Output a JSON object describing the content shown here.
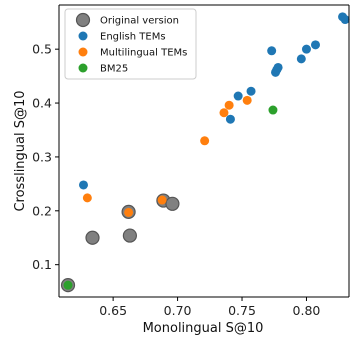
{
  "chart_data": {
    "type": "scatter",
    "xlabel": "Monolingual S@10",
    "ylabel": "Crosslingual S@10",
    "xlim": [
      0.608,
      0.833
    ],
    "ylim": [
      0.04,
      0.582
    ],
    "xticks": [
      0.65,
      0.7,
      0.75,
      0.8
    ],
    "xtick_labels": [
      "0.65",
      "0.70",
      "0.75",
      "0.80"
    ],
    "yticks": [
      0.1,
      0.2,
      0.3,
      0.4,
      0.5
    ],
    "ytick_labels": [
      "0.1",
      "0.2",
      "0.3",
      "0.4",
      "0.5"
    ],
    "grid": false,
    "legend_position": "top-left",
    "series": [
      {
        "name": "Original version",
        "color": "#808080",
        "marker": "large-circle",
        "points": [
          [
            0.615,
            0.062
          ],
          [
            0.634,
            0.15
          ],
          [
            0.662,
            0.198
          ],
          [
            0.663,
            0.154
          ],
          [
            0.689,
            0.219
          ],
          [
            0.696,
            0.213
          ]
        ]
      },
      {
        "name": "English TEMs",
        "color": "#1f77b4",
        "marker": "circle",
        "points": [
          [
            0.627,
            0.248
          ],
          [
            0.741,
            0.37
          ],
          [
            0.747,
            0.413
          ],
          [
            0.757,
            0.422
          ],
          [
            0.773,
            0.497
          ],
          [
            0.776,
            0.457
          ],
          [
            0.777,
            0.462
          ],
          [
            0.778,
            0.466
          ],
          [
            0.796,
            0.482
          ],
          [
            0.8,
            0.5
          ],
          [
            0.807,
            0.508
          ],
          [
            0.828,
            0.56
          ],
          [
            0.83,
            0.555
          ]
        ]
      },
      {
        "name": "Multilingual TEMs",
        "color": "#ff7f0e",
        "marker": "circle",
        "points": [
          [
            0.63,
            0.224
          ],
          [
            0.662,
            0.197
          ],
          [
            0.688,
            0.22
          ],
          [
            0.721,
            0.33
          ],
          [
            0.736,
            0.382
          ],
          [
            0.74,
            0.396
          ],
          [
            0.754,
            0.405
          ]
        ]
      },
      {
        "name": "BM25",
        "color": "#2ca02c",
        "marker": "circle",
        "points": [
          [
            0.615,
            0.062
          ],
          [
            0.774,
            0.387
          ]
        ]
      }
    ]
  }
}
